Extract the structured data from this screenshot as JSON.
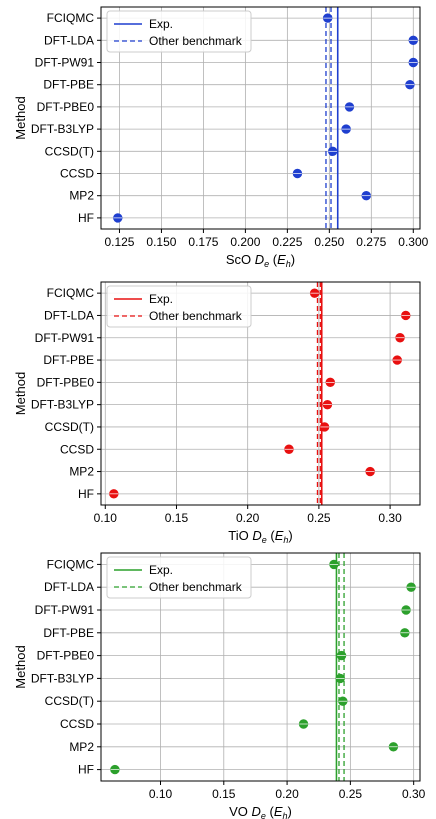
{
  "chart_data": [
    {
      "type": "scatter",
      "method_label": "Method",
      "xlabel": {
        "molecule": "ScO",
        "symbol": "D",
        "sub": "e",
        "unit": "E",
        "unit_sub": "h"
      },
      "ylabel": "Method",
      "categories": [
        "FCIQMC",
        "DFT-LDA",
        "DFT-PW91",
        "DFT-PBE",
        "DFT-PBE0",
        "DFT-B3LYP",
        "CCSD(T)",
        "CCSD",
        "MP2",
        "HF"
      ],
      "values": [
        0.249,
        0.3,
        0.3,
        0.298,
        0.262,
        0.26,
        0.252,
        0.231,
        0.272,
        0.124
      ],
      "color": "#1f3fcf",
      "exp": 0.255,
      "benchmarks": [
        0.248,
        0.251
      ],
      "xlim": [
        0.114,
        0.304
      ],
      "xticks": [
        "0.125",
        "0.150",
        "0.175",
        "0.200",
        "0.225",
        "0.250",
        "0.275",
        "0.300"
      ],
      "legend": {
        "position": "top-left",
        "exp_label": "Exp.",
        "bench_label": "Other benchmark"
      },
      "grid": true
    },
    {
      "type": "scatter",
      "method_label": "Method",
      "xlabel": {
        "molecule": "TiO",
        "symbol": "D",
        "sub": "e",
        "unit": "E",
        "unit_sub": "h"
      },
      "ylabel": "Method",
      "categories": [
        "FCIQMC",
        "DFT-LDA",
        "DFT-PW91",
        "DFT-PBE",
        "DFT-PBE0",
        "DFT-B3LYP",
        "CCSD(T)",
        "CCSD",
        "MP2",
        "HF"
      ],
      "values": [
        0.247,
        0.311,
        0.307,
        0.305,
        0.258,
        0.256,
        0.254,
        0.229,
        0.286,
        0.106
      ],
      "color": "#e81010",
      "exp": 0.252,
      "benchmarks": [
        0.249,
        0.251
      ],
      "xlim": [
        0.097,
        0.321
      ],
      "xticks": [
        "0.10",
        "0.15",
        "0.20",
        "0.25",
        "0.30"
      ],
      "legend": {
        "position": "top-left",
        "exp_label": "Exp.",
        "bench_label": "Other benchmark"
      },
      "grid": true
    },
    {
      "type": "scatter",
      "method_label": "Method",
      "xlabel": {
        "molecule": "VO",
        "symbol": "D",
        "sub": "e",
        "unit": "E",
        "unit_sub": "h"
      },
      "ylabel": "Method",
      "categories": [
        "FCIQMC",
        "DFT-LDA",
        "DFT-PW91",
        "DFT-PBE",
        "DFT-PBE0",
        "DFT-B3LYP",
        "CCSD(T)",
        "CCSD",
        "MP2",
        "HF"
      ],
      "values": [
        0.237,
        0.298,
        0.294,
        0.293,
        0.243,
        0.242,
        0.244,
        0.213,
        0.284,
        0.064
      ],
      "color": "#2ca02c",
      "exp": 0.239,
      "benchmarks": [
        0.241,
        0.245
      ],
      "xlim": [
        0.053,
        0.305
      ],
      "xticks": [
        "0.10",
        "0.15",
        "0.20",
        "0.25",
        "0.30"
      ],
      "legend": {
        "position": "top-left",
        "exp_label": "Exp.",
        "bench_label": "Other benchmark"
      },
      "grid": true
    }
  ]
}
